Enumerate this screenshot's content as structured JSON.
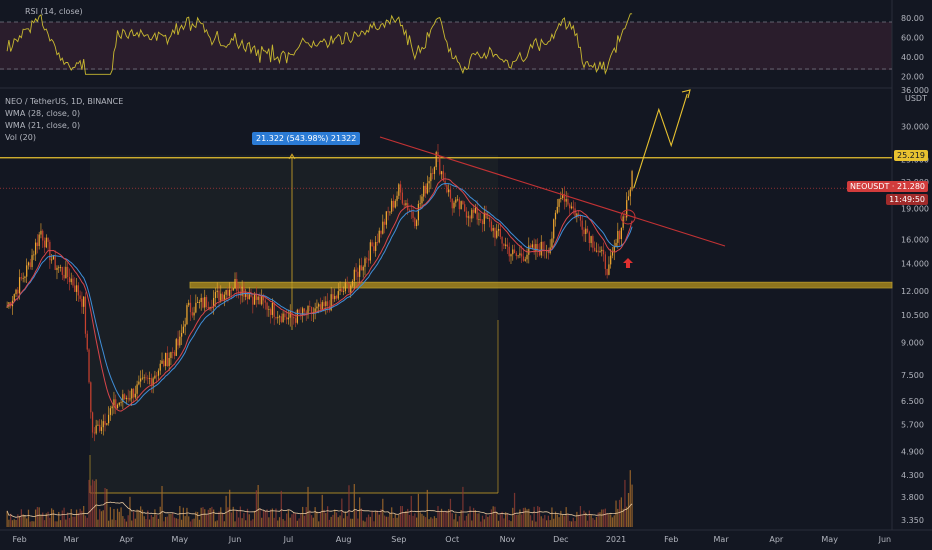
{
  "rsi_panel": {
    "title": "RSI (14, close)",
    "ticks": [
      "80.00",
      "60.00",
      "40.00",
      "20.00"
    ]
  },
  "header": {
    "symbol_line": "NEO / TetherUS, 1D, BINANCE",
    "indicators": [
      "WMA (28, close, 0)",
      "WMA (21, close, 0)",
      "Vol (20)"
    ]
  },
  "price_axis": {
    "unit": "USDT",
    "ticks": [
      "36.000",
      "30.000",
      "25.000",
      "22.000",
      "19.000",
      "16.000",
      "14.000",
      "12.000",
      "10.500",
      "9.000",
      "7.500",
      "6.500",
      "5.700",
      "4.900",
      "4.300",
      "3.800",
      "3.350"
    ]
  },
  "price_tags": {
    "resistance": "25.219",
    "last_symbol": "NEOUSDT",
    "last_price": "21.280",
    "countdown": "11:49:50"
  },
  "measure_box": {
    "label": "21.322 (543.98%) 21322"
  },
  "time_axis": {
    "labels": [
      "Feb",
      "Mar",
      "Apr",
      "May",
      "Jun",
      "Jul",
      "Aug",
      "Sep",
      "Oct",
      "Nov",
      "Dec",
      "2021",
      "Feb",
      "Mar",
      "Apr",
      "May",
      "Jun"
    ]
  },
  "chart_data": {
    "type": "candlestick",
    "symbol": "NEO / TetherUS",
    "interval": "1D",
    "exchange": "BINANCE",
    "y_scale": "log",
    "ylim": [
      3.2,
      37
    ],
    "price_path": [
      {
        "date": "2020-01-25",
        "close": 11.0
      },
      {
        "date": "2020-02-05",
        "close": 13.5
      },
      {
        "date": "2020-02-13",
        "close": 16.8
      },
      {
        "date": "2020-02-20",
        "close": 14.0
      },
      {
        "date": "2020-03-01",
        "close": 12.8
      },
      {
        "date": "2020-03-08",
        "close": 11.2
      },
      {
        "date": "2020-03-13",
        "close": 5.4
      },
      {
        "date": "2020-03-25",
        "close": 6.3
      },
      {
        "date": "2020-04-15",
        "close": 7.4
      },
      {
        "date": "2020-05-01",
        "close": 9.0
      },
      {
        "date": "2020-05-05",
        "close": 10.8
      },
      {
        "date": "2020-05-20",
        "close": 11.5
      },
      {
        "date": "2020-06-01",
        "close": 12.5
      },
      {
        "date": "2020-06-15",
        "close": 11.3
      },
      {
        "date": "2020-07-01",
        "close": 10.3
      },
      {
        "date": "2020-07-20",
        "close": 10.8
      },
      {
        "date": "2020-08-05",
        "close": 12.5
      },
      {
        "date": "2020-08-20",
        "close": 16.2
      },
      {
        "date": "2020-09-01",
        "close": 21.0
      },
      {
        "date": "2020-09-10",
        "close": 18.0
      },
      {
        "date": "2020-09-22",
        "close": 25.5
      },
      {
        "date": "2020-10-01",
        "close": 19.5
      },
      {
        "date": "2020-10-20",
        "close": 17.8
      },
      {
        "date": "2020-11-05",
        "close": 14.5
      },
      {
        "date": "2020-11-25",
        "close": 15.5
      },
      {
        "date": "2020-12-01",
        "close": 21.0
      },
      {
        "date": "2020-12-15",
        "close": 17.0
      },
      {
        "date": "2020-12-28",
        "close": 13.5
      },
      {
        "date": "2021-01-05",
        "close": 18.0
      },
      {
        "date": "2021-01-10",
        "close": 22.5
      }
    ],
    "levels": {
      "resistance": 25.219,
      "support_zone": [
        12.2,
        12.6
      ],
      "last_price": 21.28
    },
    "projection": [
      {
        "date": "2021-01-11",
        "price": 21.3
      },
      {
        "date": "2021-01-25",
        "price": 33.0
      },
      {
        "date": "2021-02-01",
        "price": 27.0
      },
      {
        "date": "2021-02-10",
        "price": 36.0
      }
    ],
    "rsi": {
      "ylim": [
        10,
        90
      ],
      "levels": [
        70,
        30
      ],
      "ticks": [
        80,
        60,
        40,
        20
      ]
    }
  }
}
